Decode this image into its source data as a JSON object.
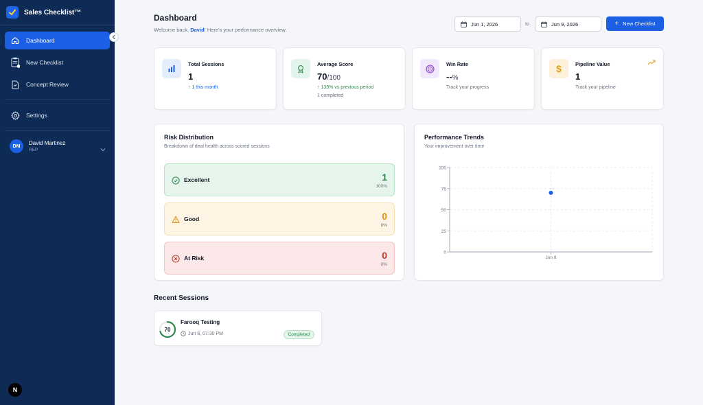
{
  "app": {
    "title": "Sales Checklist™"
  },
  "sidebar": {
    "items": [
      {
        "label": "Dashboard",
        "icon": "home-icon",
        "active": true
      },
      {
        "label": "New Checklist",
        "icon": "clipboard-icon"
      },
      {
        "label": "Concept Review",
        "icon": "document-icon"
      },
      {
        "label": "Settings",
        "icon": "gear-icon"
      }
    ],
    "user": {
      "initials": "DM",
      "name": "David Martinez",
      "role": "REP"
    },
    "footer_logo": "N"
  },
  "header": {
    "title": "Dashboard",
    "welcome_prefix": "Welcome back, ",
    "welcome_name": "David",
    "welcome_suffix": "! Here's your performance overview.",
    "date_from": "Jun 1, 2026",
    "date_to_label": "to",
    "date_to": "Jun 9, 2026",
    "new_button": "New Checklist"
  },
  "stats": [
    {
      "label": "Total Sessions",
      "value": "1",
      "suffix": "",
      "sub": "↑ 1 this month",
      "sub_color": "#1b5fe5",
      "sub2": ""
    },
    {
      "label": "Average Score",
      "value": "70",
      "suffix": "/100",
      "sub": "↑ 133% vs previous period",
      "sub_color": "#2f8a4f",
      "sub2": "1 completed"
    },
    {
      "label": "Win Rate",
      "value": "--",
      "suffix": "%",
      "sub": "Track your progress",
      "sub_color": "#6b7280",
      "sub2": ""
    },
    {
      "label": "Pipeline Value",
      "value": "1",
      "suffix": "",
      "sub": "Track your pipeline",
      "sub_color": "#6b7280",
      "sub2": ""
    }
  ],
  "risk": {
    "title": "Risk Distribution",
    "subtitle": "Breakdown of deal health across scored sessions",
    "items": [
      {
        "label": "Excellent",
        "count": "1",
        "percent": "100%",
        "color": "#2f8a4f"
      },
      {
        "label": "Good",
        "count": "0",
        "percent": "0%",
        "color": "#d99414"
      },
      {
        "label": "At Risk",
        "count": "0",
        "percent": "0%",
        "color": "#c0392b"
      }
    ]
  },
  "performance": {
    "title": "Performance Trends",
    "subtitle": "Your improvement over time"
  },
  "chart_data": {
    "type": "scatter",
    "x": [
      "Jun 8"
    ],
    "y": [
      70
    ],
    "ylim": [
      0,
      100
    ],
    "yticks": [
      "0",
      "25",
      "50",
      "75",
      "100"
    ],
    "grid": true
  },
  "recent": {
    "title": "Recent Sessions",
    "sessions": [
      {
        "score": "70",
        "score_value": 70,
        "name": "Farooq Testing",
        "time": "Jun 8, 07:30 PM",
        "status": "Completed"
      }
    ]
  }
}
